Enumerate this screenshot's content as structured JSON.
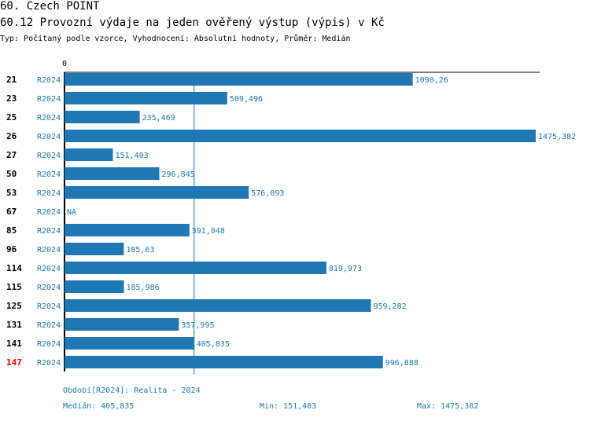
{
  "header": {
    "title": "60. Czech POINT",
    "subtitle": "60.12 Provozní výdaje na jeden ověřený výstup (výpis) v Kč",
    "type_line": "Typ: Počítaný podle vzorce, Vyhodnocení: Absolutní hodnoty, Průměr: Medián"
  },
  "colors": {
    "bar": "#1f77b4",
    "label": "#1f77b4",
    "highlight": "#ff0000",
    "axis": "#000000"
  },
  "chart_data": {
    "type": "bar",
    "orientation": "horizontal",
    "x_tick_labels": [
      "0"
    ],
    "xlim": [
      0,
      1475.382
    ],
    "median": 405.835,
    "series_label": "R2024",
    "highlight_category": "147",
    "categories": [
      "21",
      "23",
      "25",
      "26",
      "27",
      "50",
      "53",
      "67",
      "85",
      "96",
      "114",
      "115",
      "125",
      "131",
      "141",
      "147"
    ],
    "values": [
      1090.26,
      509.496,
      235.469,
      1475.382,
      151.403,
      296.845,
      576.893,
      null,
      391.048,
      185.63,
      819.973,
      185.986,
      959.282,
      357.995,
      405.835,
      996.888
    ],
    "value_labels": [
      "1090,26",
      "509,496",
      "235,469",
      "1475,382",
      "151,403",
      "296,845",
      "576,893",
      "NA",
      "391,048",
      "185,63",
      "819,973",
      "185,986",
      "959,282",
      "357,995",
      "405,835",
      "996,888"
    ]
  },
  "footer": {
    "period": "Období[R2024]: Realita - 2024",
    "median": "Medián: 405,835",
    "min": "Min: 151,403",
    "max": "Max: 1475,382"
  }
}
